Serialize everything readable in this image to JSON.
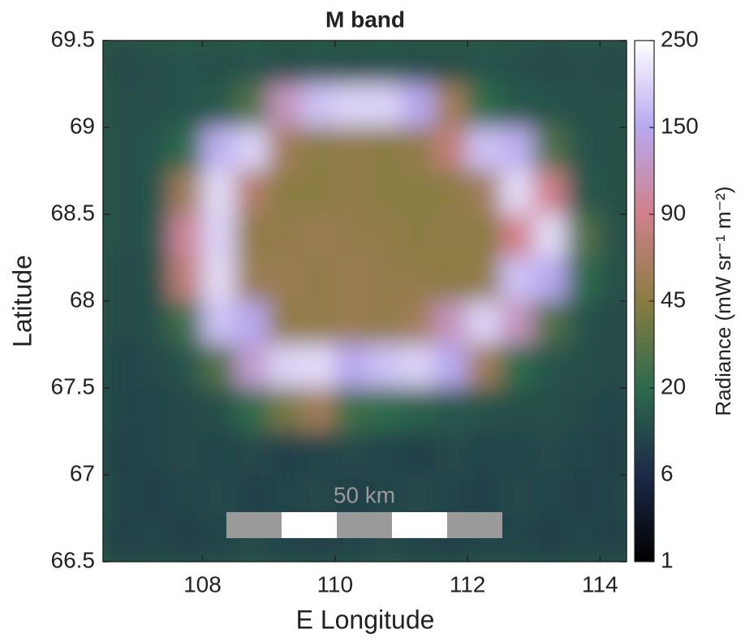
{
  "chart_data": {
    "type": "heatmap",
    "title": "M band",
    "xlabel": "E Longitude",
    "ylabel": "Latitude",
    "colorbar_label": "Radiance (mW sr⁻¹ m⁻²)",
    "annotation": "50 km",
    "xlim": [
      106.5,
      114.4
    ],
    "xticks": [
      108,
      110,
      112,
      114
    ],
    "ylim": [
      66.5,
      69.5
    ],
    "yticks": [
      66.5,
      67,
      67.5,
      68,
      68.5,
      69,
      69.5
    ],
    "clim": [
      1,
      250
    ],
    "cticks": [
      1,
      6,
      20,
      45,
      90,
      150,
      250
    ],
    "colormap": [
      "#000000",
      "#1c2a48",
      "#2d6a4c",
      "#8a7c42",
      "#d0808a",
      "#b8a8f0",
      "#ffffff"
    ],
    "x": [
      106.75,
      107.25,
      107.75,
      108.25,
      108.75,
      109.25,
      109.75,
      110.25,
      110.75,
      111.25,
      111.75,
      112.25,
      112.75,
      113.25,
      113.75,
      114.25
    ],
    "y": [
      69.375,
      69.125,
      68.875,
      68.625,
      68.375,
      68.125,
      67.875,
      67.625,
      67.375,
      67.125,
      66.875,
      66.625
    ],
    "z": [
      [
        13,
        14,
        15,
        14,
        15,
        14,
        15,
        14,
        15,
        14,
        14,
        15,
        14,
        13,
        14,
        13
      ],
      [
        14,
        14,
        15,
        16,
        30,
        120,
        180,
        200,
        200,
        150,
        60,
        20,
        16,
        15,
        14,
        14
      ],
      [
        14,
        15,
        20,
        160,
        200,
        60,
        45,
        50,
        45,
        50,
        80,
        180,
        160,
        30,
        15,
        14
      ],
      [
        14,
        15,
        60,
        210,
        70,
        45,
        45,
        50,
        45,
        45,
        45,
        60,
        210,
        90,
        16,
        14
      ],
      [
        14,
        15,
        100,
        200,
        50,
        50,
        55,
        50,
        50,
        45,
        50,
        45,
        90,
        210,
        30,
        14
      ],
      [
        13,
        14,
        80,
        210,
        55,
        55,
        50,
        55,
        50,
        50,
        45,
        50,
        180,
        150,
        20,
        14
      ],
      [
        13,
        14,
        25,
        180,
        150,
        50,
        50,
        55,
        50,
        60,
        120,
        200,
        120,
        30,
        15,
        13
      ],
      [
        12,
        13,
        15,
        30,
        130,
        200,
        210,
        150,
        180,
        200,
        150,
        60,
        20,
        15,
        14,
        13
      ],
      [
        12,
        12,
        13,
        14,
        20,
        40,
        60,
        25,
        20,
        18,
        16,
        15,
        14,
        14,
        13,
        12
      ],
      [
        11,
        12,
        13,
        12,
        13,
        11,
        12,
        13,
        12,
        11,
        13,
        12,
        12,
        13,
        12,
        11
      ],
      [
        12,
        11,
        12,
        13,
        11,
        12,
        13,
        11,
        12,
        13,
        12,
        11,
        13,
        12,
        11,
        12
      ],
      [
        11,
        12,
        11,
        12,
        13,
        12,
        11,
        12,
        13,
        12,
        11,
        12,
        12,
        11,
        12,
        11
      ]
    ]
  }
}
